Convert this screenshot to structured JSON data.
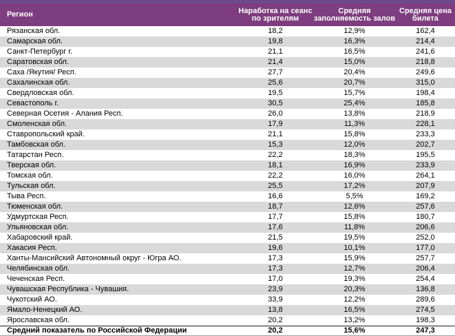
{
  "colors": {
    "header_top": "#6B4A8E",
    "header_bg": "#7E3D7E",
    "band_bg": "#D9D9D9",
    "summary_border": "#1a1a1a",
    "bottom_border": "#9e9e9e"
  },
  "chart_data": {
    "type": "table",
    "columns": [
      "Регион",
      "Наработка на сеанс по зрителям",
      "Средняя заполняемость залов",
      "Средняя цена билета"
    ],
    "rows": [
      [
        "Рязанская обл.",
        "18,2",
        "12,9%",
        "162,4"
      ],
      [
        "Самарская обл.",
        "19,8",
        "16,3%",
        "214,4"
      ],
      [
        "Санкт-Петербург г.",
        "21,1",
        "16,5%",
        "241,6"
      ],
      [
        "Саратовская обл.",
        "21,4",
        "15,0%",
        "218,8"
      ],
      [
        "Саха /Якутия/ Респ.",
        "27,7",
        "20,4%",
        "249,6"
      ],
      [
        "Сахалинская обл.",
        "25,6",
        "20,7%",
        "315,0"
      ],
      [
        "Свердловская обл.",
        "19,5",
        "15,7%",
        "198,4"
      ],
      [
        "Севастополь г.",
        "30,5",
        "25,4%",
        "185,8"
      ],
      [
        "Северная Осетия - Алания Респ.",
        "26,0",
        "13,8%",
        "218,9"
      ],
      [
        "Смоленская обл.",
        "17,9",
        "11,3%",
        "228,1"
      ],
      [
        "Ставропольский край.",
        "21,1",
        "15,8%",
        "233,3"
      ],
      [
        "Тамбовская обл.",
        "15,3",
        "12,0%",
        "202,7"
      ],
      [
        "Татарстан Респ.",
        "22,2",
        "18,3%",
        "195,5"
      ],
      [
        "Тверская обл.",
        "18,1",
        "16,9%",
        "233,9"
      ],
      [
        "Томская обл.",
        "22,2",
        "16,0%",
        "264,1"
      ],
      [
        "Тульская обл.",
        "25,5",
        "17,2%",
        "207,9"
      ],
      [
        "Тыва Респ.",
        "16,6",
        "5,5%",
        "169,2"
      ],
      [
        "Тюменская обл.",
        "18,7",
        "12,6%",
        "257,6"
      ],
      [
        "Удмуртская Респ.",
        "17,7",
        "15,8%",
        "180,7"
      ],
      [
        "Ульяновская обл.",
        "17,6",
        "11,8%",
        "206,6"
      ],
      [
        "Хабаровский край.",
        "21,5",
        "19,5%",
        "252,0"
      ],
      [
        "Хакасия Респ.",
        "19,6",
        "10,1%",
        "177,0"
      ],
      [
        "Ханты-Мансийский Автономный округ - Югра АО.",
        "17,3",
        "15,9%",
        "257,7"
      ],
      [
        "Челябинская обл.",
        "17,3",
        "12,7%",
        "206,4"
      ],
      [
        "Чеченская Респ.",
        "17,0",
        "19,3%",
        "254,4"
      ],
      [
        "Чувашская Республика - Чувашия.",
        "23,9",
        "20,3%",
        "136,8"
      ],
      [
        "Чукотский АО.",
        "33,9",
        "12,2%",
        "289,6"
      ],
      [
        "Ямало-Ненецкий АО.",
        "13,8",
        "16,5%",
        "274,5"
      ],
      [
        "Ярославская обл.",
        "20,2",
        "13,2%",
        "198,3"
      ]
    ],
    "summary_row": [
      "Средний показатель по Российской Федерации",
      "20,2",
      "15,6%",
      "247,3"
    ]
  }
}
